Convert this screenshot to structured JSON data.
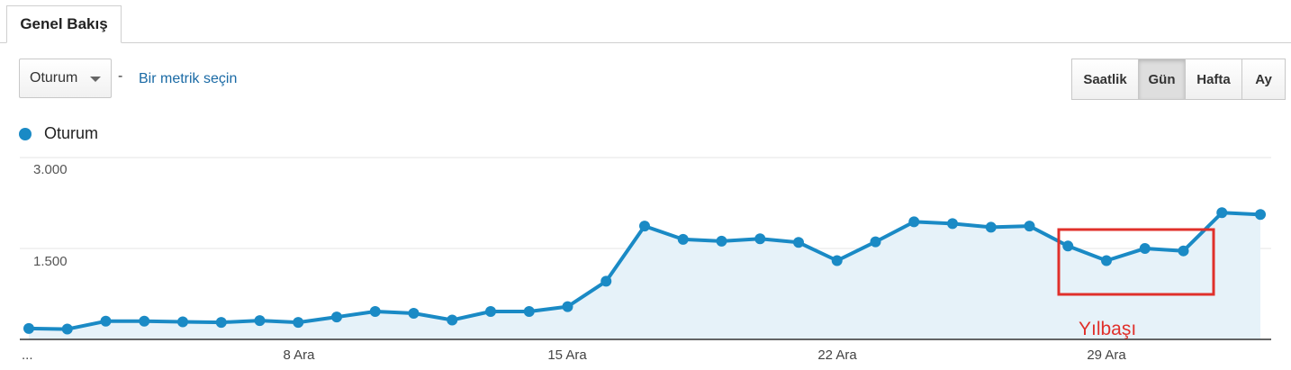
{
  "tab": {
    "label": "Genel Bakış"
  },
  "metric_select": {
    "value": "Oturum",
    "separator": "-",
    "add_metric_link": "Bir metrik seçin"
  },
  "granularity": {
    "buttons": [
      "Saatlik",
      "Gün",
      "Hafta",
      "Ay"
    ],
    "active": "Gün"
  },
  "legend": {
    "label": "Oturum",
    "color": "#1a8ac5"
  },
  "annotation": {
    "label": "Yılbaşı",
    "color": "#e0302b"
  },
  "chart_data": {
    "type": "area",
    "series": [
      {
        "name": "Oturum",
        "values": [
          180,
          170,
          300,
          300,
          290,
          280,
          310,
          280,
          370,
          460,
          430,
          320,
          460,
          460,
          540,
          960,
          1870,
          1650,
          1620,
          1660,
          1600,
          1300,
          1610,
          1940,
          1910,
          1850,
          1870,
          1540,
          1300,
          1500,
          1460,
          2090,
          2060
        ]
      }
    ],
    "x_tick_labels": [
      "...",
      "8 Ara",
      "15 Ara",
      "22 Ara",
      "29 Ara"
    ],
    "y_tick_labels": [
      "3.000",
      "1.500"
    ],
    "ylim": [
      0,
      3000
    ],
    "grid": true,
    "color": "#1a8ac5",
    "fill": "#e6f2f9"
  }
}
